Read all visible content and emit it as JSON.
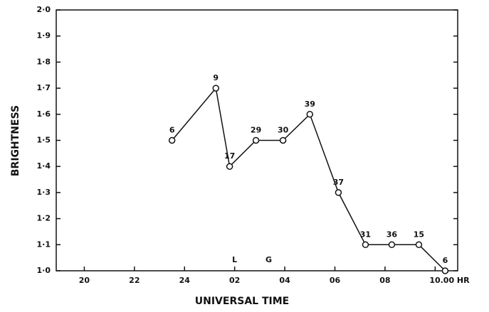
{
  "chart_data": {
    "type": "line",
    "xlabel": "UNIVERSAL TIME",
    "ylabel": "BRIGHTNESS",
    "x": [
      23.5,
      25.25,
      25.8,
      26.85,
      27.93,
      29.0,
      30.14,
      31.22,
      32.27,
      33.35,
      34.4
    ],
    "series": [
      {
        "values": [
          1.5,
          1.7,
          1.4,
          1.5,
          1.5,
          1.6,
          1.3,
          1.1,
          1.1,
          1.1,
          1.0
        ],
        "color": "#111111",
        "point_labels": [
          "6",
          "9",
          "17",
          "29",
          "30",
          "39",
          "37",
          "31",
          "36",
          "15",
          "6"
        ]
      }
    ],
    "xlim": [
      18.88,
      34.9
    ],
    "ylim": [
      1.0,
      2.0
    ],
    "xticks": [
      {
        "value": 20,
        "label": "20"
      },
      {
        "value": 22,
        "label": "22"
      },
      {
        "value": 24,
        "label": "24"
      },
      {
        "value": 26,
        "label": "02"
      },
      {
        "value": 28,
        "label": "04"
      },
      {
        "value": 30,
        "label": "06"
      },
      {
        "value": 32,
        "label": "08"
      },
      {
        "value": 34,
        "label": "10.00 HR"
      }
    ],
    "yticks": [
      {
        "value": 1.0,
        "label": "1·0"
      },
      {
        "value": 1.1,
        "label": "1·1"
      },
      {
        "value": 1.2,
        "label": "1·2"
      },
      {
        "value": 1.3,
        "label": "1·3"
      },
      {
        "value": 1.4,
        "label": "1·4"
      },
      {
        "value": 1.5,
        "label": "1·5"
      },
      {
        "value": 1.6,
        "label": "1·6"
      },
      {
        "value": 1.7,
        "label": "1·7"
      },
      {
        "value": 1.8,
        "label": "1·8"
      },
      {
        "value": 1.9,
        "label": "1·9"
      },
      {
        "value": 2.0,
        "label": "2·0"
      }
    ],
    "annotations": [
      {
        "text": "L",
        "x": 26.0
      },
      {
        "text": "G",
        "x": 27.36
      }
    ]
  }
}
